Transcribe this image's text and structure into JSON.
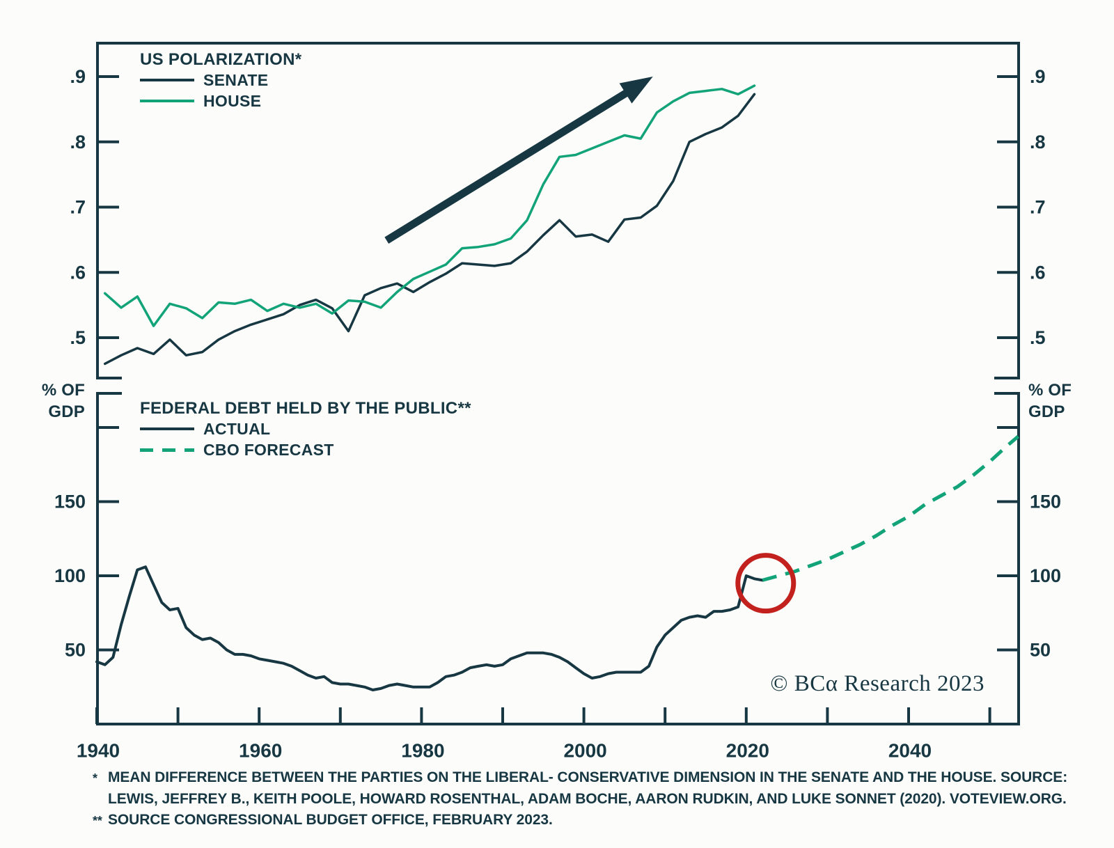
{
  "colors": {
    "dark": "#173742",
    "green": "#12A379",
    "red": "#C2211D",
    "background": "#FCFCFA"
  },
  "copyright": "© BCα Research 2023",
  "footnotes": [
    {
      "marker": "*",
      "text": "MEAN DIFFERENCE BETWEEN THE PARTIES ON THE LIBERAL- CONSERVATIVE DIMENSION IN THE SENATE AND THE HOUSE. SOURCE:"
    },
    {
      "marker": "",
      "text": "LEWIS, JEFFREY B., KEITH POOLE, HOWARD ROSENTHAL, ADAM BOCHE, AARON RUDKIN, AND LUKE SONNET (2020). VOTEVIEW.ORG."
    },
    {
      "marker": "**",
      "text": "SOURCE CONGRESSIONAL BUDGET OFFICE, FEBRUARY 2023."
    }
  ],
  "chart_data": [
    {
      "id": "polarization",
      "type": "line",
      "title": "US POLARIZATION*",
      "legend_position": "top-left",
      "x_axis": {
        "range": [
          1940,
          2053.6
        ],
        "grid": false
      },
      "y_axis": {
        "ticks": [
          0.5,
          0.6,
          0.7,
          0.8,
          0.9
        ],
        "tick_labels": [
          ".5",
          ".6",
          ".7",
          ".8",
          ".9"
        ],
        "range": [
          0.44,
          0.95
        ],
        "sides": "both"
      },
      "series": [
        {
          "name": "SENATE",
          "color_key": "dark",
          "dash": false,
          "x_start": 1941,
          "x_step": 2,
          "values": [
            0.46,
            0.473,
            0.484,
            0.475,
            0.497,
            0.473,
            0.478,
            0.497,
            0.51,
            0.52,
            0.528,
            0.536,
            0.55,
            0.558,
            0.545,
            0.51,
            0.565,
            0.576,
            0.583,
            0.57,
            0.585,
            0.598,
            0.614,
            0.612,
            0.61,
            0.614,
            0.632,
            0.657,
            0.68,
            0.655,
            0.658,
            0.647,
            0.681,
            0.684,
            0.702,
            0.74,
            0.8,
            0.812,
            0.822,
            0.84,
            0.873
          ]
        },
        {
          "name": "HOUSE",
          "color_key": "green",
          "dash": false,
          "x_start": 1941,
          "x_step": 2,
          "values": [
            0.568,
            0.546,
            0.563,
            0.518,
            0.552,
            0.545,
            0.53,
            0.554,
            0.552,
            0.558,
            0.541,
            0.552,
            0.546,
            0.552,
            0.537,
            0.557,
            0.555,
            0.546,
            0.57,
            0.59,
            0.601,
            0.612,
            0.637,
            0.639,
            0.643,
            0.652,
            0.68,
            0.735,
            0.777,
            0.78,
            0.79,
            0.8,
            0.81,
            0.805,
            0.845,
            0.862,
            0.875,
            0.878,
            0.881,
            0.873,
            0.886
          ]
        }
      ],
      "annotations": [
        {
          "type": "arrow",
          "x1": 1975.7,
          "y1": 0.649,
          "x2": 2008.5,
          "y2": 0.9,
          "color_key": "dark"
        }
      ]
    },
    {
      "id": "debt",
      "type": "line",
      "title": "FEDERAL DEBT HELD BY THE PUBLIC**",
      "legend_position": "top-left",
      "x_axis": {
        "range": [
          1940,
          2053.6
        ],
        "ticks": [
          1940,
          1950,
          1960,
          1970,
          1980,
          1990,
          2000,
          2010,
          2020,
          2030,
          2040,
          2050
        ],
        "tick_labels": [
          "1940",
          "",
          "1960",
          "",
          "1980",
          "",
          "2000",
          "",
          "2020",
          "",
          "2040",
          ""
        ],
        "grid": false
      },
      "y_axis": {
        "label_line1": "% OF",
        "label_line2": "GDP",
        "ticks": [
          50,
          100,
          150,
          200
        ],
        "tick_labels": [
          "50",
          "100",
          "150",
          ""
        ],
        "range": [
          0,
          223
        ],
        "sides": "both"
      },
      "series": [
        {
          "name": "ACTUAL",
          "color_key": "dark",
          "dash": false,
          "x_start": 1940,
          "x_step": 1,
          "values": [
            42,
            40,
            45,
            67,
            86,
            104,
            106,
            94,
            82,
            77,
            78,
            65,
            60,
            57,
            58,
            55,
            50,
            47,
            47,
            46,
            44,
            43,
            42,
            41,
            39,
            36,
            33,
            31,
            32,
            28,
            27,
            27,
            26,
            25,
            23,
            24,
            26,
            27,
            26,
            25,
            25,
            25,
            28,
            32,
            33,
            35,
            38,
            39,
            40,
            39,
            40,
            44,
            46,
            48,
            48,
            48,
            47,
            45,
            42,
            38,
            34,
            31,
            32,
            34,
            35,
            35,
            35,
            35,
            39,
            52,
            60,
            65,
            70,
            72,
            73,
            72,
            76,
            76,
            77,
            79,
            100,
            98,
            97
          ]
        },
        {
          "name": "CBO FORECAST",
          "color_key": "green",
          "dash": true,
          "x": [
            2022,
            2024,
            2026,
            2028,
            2030,
            2032,
            2034,
            2036,
            2038,
            2040,
            2042,
            2044,
            2046,
            2048,
            2050,
            2052,
            2053.5
          ],
          "values": [
            97,
            100,
            103,
            107,
            111,
            116,
            121,
            127,
            134,
            140,
            148,
            154,
            160,
            168,
            177,
            187,
            194
          ]
        }
      ],
      "annotations": [
        {
          "type": "circle",
          "x": 2022.4,
          "y": 95,
          "radius_px": 40,
          "color_key": "red"
        }
      ]
    }
  ]
}
